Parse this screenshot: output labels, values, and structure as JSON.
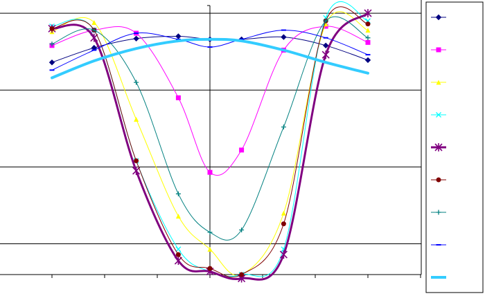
{
  "chart_data": {
    "type": "line",
    "title": "",
    "xlabel": "",
    "ylabel": "",
    "x": [
      -3,
      -2,
      -1,
      0,
      1,
      2,
      3
    ],
    "xlim": [
      -4,
      4
    ],
    "ylim": [
      -0.4,
      3.1
    ],
    "grid_y": [
      0,
      1,
      2,
      3
    ],
    "legend_position": "right",
    "series": [
      {
        "color": "#000080",
        "marker": "diamond",
        "width": 1,
        "x": [
          -3,
          -2.2,
          -1.4,
          -0.6,
          0,
          0.6,
          1.4,
          2.2,
          3
        ],
        "values": [
          2.36,
          2.55,
          2.67,
          2.7,
          2.66,
          2.66,
          2.69,
          2.58,
          2.39
        ]
      },
      {
        "color": "#ff00ff",
        "marker": "square",
        "width": 1,
        "x": [
          -3,
          -2.2,
          -1.4,
          -0.6,
          0,
          0.6,
          1.4,
          2.2,
          3
        ],
        "values": [
          2.58,
          2.78,
          2.74,
          1.9,
          0.93,
          1.22,
          2.52,
          2.83,
          2.62
        ]
      },
      {
        "color": "#ffff00",
        "marker": "triangle",
        "width": 1,
        "x": [
          -3,
          -2.2,
          -1.4,
          -0.6,
          0,
          0.6,
          1.4,
          2.2,
          3
        ],
        "values": [
          2.76,
          2.88,
          1.62,
          0.36,
          -0.07,
          -0.4,
          0.4,
          2.86,
          2.78
        ]
      },
      {
        "color": "#00ffff",
        "marker": "x",
        "width": 1,
        "x": [
          -3,
          -2.2,
          -1.4,
          -0.6,
          0,
          0.6,
          1.4,
          2.2,
          3
        ],
        "values": [
          2.83,
          2.78,
          1.08,
          -0.07,
          -0.36,
          -0.4,
          -0.07,
          2.94,
          2.9
        ]
      },
      {
        "color": "#800080",
        "marker": "star",
        "width": 3,
        "x": [
          -3,
          -2.2,
          -1.4,
          -0.6,
          0,
          0.6,
          1.4,
          2.2,
          3
        ],
        "values": [
          2.8,
          2.68,
          0.95,
          -0.22,
          -0.36,
          -0.45,
          -0.14,
          2.46,
          3.0
        ]
      },
      {
        "color": "#800000",
        "marker": "circle",
        "width": 1,
        "x": [
          -3,
          -2.2,
          -1.4,
          -0.6,
          0,
          0.6,
          1.4,
          2.2,
          3
        ],
        "values": [
          2.8,
          2.78,
          1.08,
          -0.14,
          -0.32,
          -0.4,
          0.26,
          2.9,
          2.86
        ]
      },
      {
        "color": "#008080",
        "marker": "plus",
        "width": 1,
        "x": [
          -3,
          -2.2,
          -1.4,
          -0.6,
          0,
          0.6,
          1.4,
          2.2,
          3
        ],
        "values": [
          2.6,
          2.78,
          2.1,
          0.65,
          0.15,
          0.18,
          1.52,
          2.9,
          2.68
        ]
      },
      {
        "color": "#0000ff",
        "marker": "dash",
        "width": 1,
        "x": [
          -3,
          -2.2,
          -1.4,
          -0.6,
          0,
          0.6,
          1.4,
          2.2,
          3
        ],
        "values": [
          2.26,
          2.52,
          2.74,
          2.66,
          2.56,
          2.66,
          2.78,
          2.68,
          2.46
        ]
      },
      {
        "color": "#33ccff",
        "marker": "none",
        "width": 4,
        "x": [
          -3,
          -2.2,
          -1.4,
          -0.6,
          0,
          0.6,
          1.4,
          2.2,
          3
        ],
        "values": [
          2.16,
          2.38,
          2.54,
          2.64,
          2.66,
          2.64,
          2.52,
          2.36,
          2.22
        ]
      }
    ]
  }
}
